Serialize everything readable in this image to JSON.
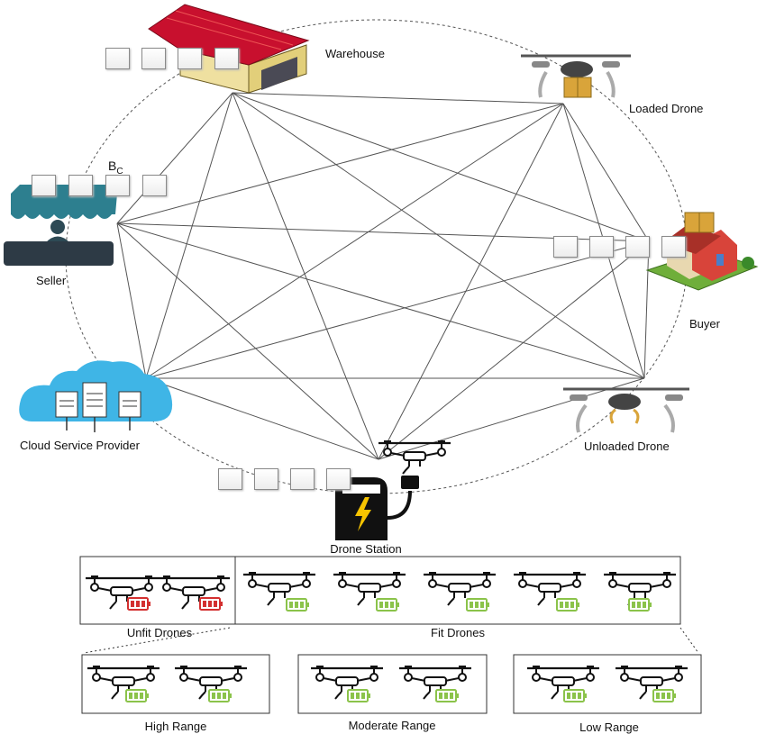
{
  "nodes": {
    "warehouse": "Warehouse",
    "loaded_drone": "Loaded Drone",
    "buyer": "Buyer",
    "unloaded_drone": "Unloaded Drone",
    "drone_station": "Drone Station",
    "cloud": "Cloud Service Provider",
    "seller": "Seller"
  },
  "block_label": "B",
  "block_label_sub": "C",
  "fleet": {
    "unfit_label": "Unfit Drones",
    "fit_label": "Fit Drones",
    "high_label": "High Range",
    "moderate_label": "Moderate Range",
    "low_label": "Low Range"
  },
  "colors": {
    "edge": "#555555",
    "roof_red": "#c8102e",
    "shop_teal": "#2d7f8f",
    "cloud_blue": "#3fb5e6",
    "battery_red": "#d32f2f",
    "battery_green": "#8bc34a",
    "package": "#d9a43a"
  }
}
